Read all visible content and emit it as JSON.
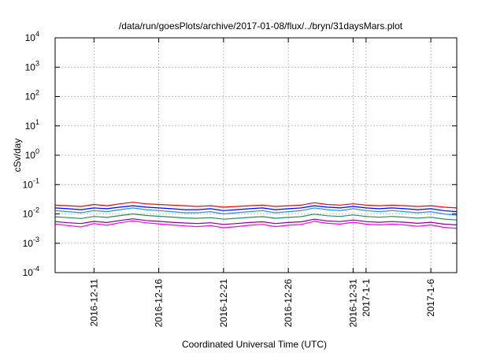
{
  "chart_data": {
    "type": "line",
    "title": "/data/run/goesPlots/archive/2017-01-08/flux/../bryn/31daysMars.plot",
    "xlabel": "Coordinated Universal Time (UTC)",
    "ylabel": "cSv/day",
    "x_scale": "time",
    "y_scale": "log",
    "xlim": [
      "2016-12-08",
      "2017-01-08"
    ],
    "ylim": [
      0.0001,
      10000
    ],
    "grid": true,
    "x_ticks": [
      {
        "date": "2016-12-11",
        "label": "2016-12-11"
      },
      {
        "date": "2016-12-16",
        "label": "2016-12-16"
      },
      {
        "date": "2016-12-21",
        "label": "2016-12-21"
      },
      {
        "date": "2016-12-26",
        "label": "2016-12-26"
      },
      {
        "date": "2016-12-31",
        "label": "2016-12-31"
      },
      {
        "date": "2017-01-01",
        "label": "2017-1-1"
      },
      {
        "date": "2017-01-06",
        "label": "2017-1-6"
      }
    ],
    "y_ticks": [
      {
        "value": 0.0001,
        "base": "10",
        "exp": "-4"
      },
      {
        "value": 0.001,
        "base": "10",
        "exp": "-3"
      },
      {
        "value": 0.01,
        "base": "10",
        "exp": "-2"
      },
      {
        "value": 0.1,
        "base": "10",
        "exp": "-1"
      },
      {
        "value": 1,
        "base": "10",
        "exp": "0"
      },
      {
        "value": 10,
        "base": "10",
        "exp": "1"
      },
      {
        "value": 100,
        "base": "10",
        "exp": "2"
      },
      {
        "value": 1000,
        "base": "10",
        "exp": "3"
      },
      {
        "value": 10000,
        "base": "10",
        "exp": "4"
      }
    ],
    "x": [
      "2016-12-08",
      "2016-12-09",
      "2016-12-10",
      "2016-12-11",
      "2016-12-12",
      "2016-12-13",
      "2016-12-14",
      "2016-12-15",
      "2016-12-16",
      "2016-12-17",
      "2016-12-18",
      "2016-12-19",
      "2016-12-20",
      "2016-12-21",
      "2016-12-22",
      "2016-12-23",
      "2016-12-24",
      "2016-12-25",
      "2016-12-26",
      "2016-12-27",
      "2016-12-28",
      "2016-12-29",
      "2016-12-30",
      "2016-12-31",
      "2017-01-01",
      "2017-01-02",
      "2017-01-03",
      "2017-01-04",
      "2017-01-05",
      "2017-01-06",
      "2017-01-07",
      "2017-01-08"
    ],
    "series": [
      {
        "color": "#ff0000",
        "values": [
          0.02,
          0.019,
          0.018,
          0.021,
          0.019,
          0.022,
          0.025,
          0.022,
          0.021,
          0.02,
          0.019,
          0.018,
          0.019,
          0.017,
          0.018,
          0.019,
          0.02,
          0.018,
          0.019,
          0.02,
          0.024,
          0.021,
          0.02,
          0.022,
          0.02,
          0.019,
          0.02,
          0.019,
          0.018,
          0.019,
          0.017,
          0.016
        ]
      },
      {
        "color": "#0000ff",
        "values": [
          0.016,
          0.015,
          0.014,
          0.016,
          0.015,
          0.017,
          0.019,
          0.017,
          0.016,
          0.015,
          0.014,
          0.014,
          0.015,
          0.013,
          0.014,
          0.015,
          0.016,
          0.014,
          0.015,
          0.016,
          0.019,
          0.017,
          0.016,
          0.018,
          0.016,
          0.015,
          0.016,
          0.015,
          0.014,
          0.015,
          0.013,
          0.012
        ]
      },
      {
        "color": "#1e90ff",
        "values": [
          0.013,
          0.012,
          0.011,
          0.013,
          0.012,
          0.014,
          0.016,
          0.014,
          0.013,
          0.012,
          0.011,
          0.011,
          0.012,
          0.01,
          0.011,
          0.012,
          0.013,
          0.011,
          0.012,
          0.013,
          0.016,
          0.014,
          0.013,
          0.015,
          0.013,
          0.012,
          0.013,
          0.012,
          0.011,
          0.012,
          0.01,
          0.009
        ]
      },
      {
        "color": "#2e8b57",
        "values": [
          0.008,
          0.0075,
          0.007,
          0.0082,
          0.0076,
          0.0088,
          0.01,
          0.0089,
          0.0083,
          0.0078,
          0.0073,
          0.0071,
          0.0075,
          0.0066,
          0.0071,
          0.0076,
          0.0081,
          0.0071,
          0.0076,
          0.0081,
          0.0098,
          0.0087,
          0.0082,
          0.0092,
          0.0082,
          0.0077,
          0.0082,
          0.0077,
          0.0072,
          0.0077,
          0.0067,
          0.0062
        ]
      },
      {
        "color": "#8b008b",
        "values": [
          0.0055,
          0.005,
          0.0047,
          0.0056,
          0.0051,
          0.006,
          0.0068,
          0.006,
          0.0056,
          0.0052,
          0.0049,
          0.0047,
          0.005,
          0.0044,
          0.0047,
          0.0051,
          0.0054,
          0.0047,
          0.0051,
          0.0054,
          0.0066,
          0.0058,
          0.0055,
          0.0062,
          0.0055,
          0.0052,
          0.0055,
          0.0052,
          0.0048,
          0.0052,
          0.0045,
          0.0042
        ]
      },
      {
        "color": "#ff00ff",
        "values": [
          0.0045,
          0.004,
          0.0036,
          0.0047,
          0.0041,
          0.005,
          0.0058,
          0.005,
          0.0046,
          0.0042,
          0.0039,
          0.0037,
          0.004,
          0.0034,
          0.0037,
          0.0041,
          0.0044,
          0.0037,
          0.0041,
          0.0044,
          0.0056,
          0.0048,
          0.0045,
          0.0052,
          0.0045,
          0.0042,
          0.0045,
          0.0042,
          0.0038,
          0.0042,
          0.0035,
          0.0032
        ]
      }
    ]
  }
}
